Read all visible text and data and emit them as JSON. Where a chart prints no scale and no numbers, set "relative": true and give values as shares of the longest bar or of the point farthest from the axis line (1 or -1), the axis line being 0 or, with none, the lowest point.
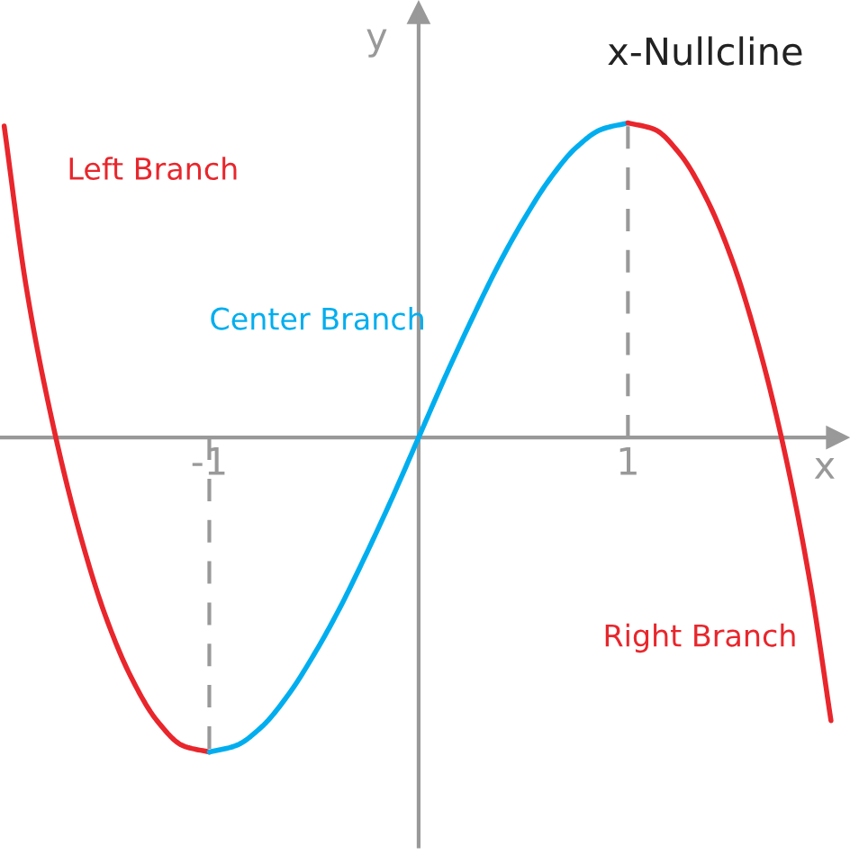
{
  "chart_data": {
    "type": "line",
    "title": "x-Nullcline",
    "xlabel": "x",
    "ylabel": "y",
    "relative": true,
    "xlim": [
      -2.0,
      2.0
    ],
    "xticks": [
      -1,
      1
    ],
    "grid": false,
    "legend": false,
    "marker": "none",
    "line_style": "solid",
    "series": [
      {
        "name": "Left Branch",
        "color": "#e8262c",
        "x": [
          -1.98,
          -1.875,
          -1.75,
          -1.625,
          -1.5,
          -1.375,
          -1.25,
          -1.125,
          -1.0
        ],
        "values": [
          0.99,
          0.48,
          0.05,
          -0.29,
          -0.56,
          -0.76,
          -0.9,
          -0.98,
          -1.0
        ]
      },
      {
        "name": "Center Branch",
        "color": "#00aeef",
        "x": [
          -1.0,
          -0.875,
          -0.75,
          -0.625,
          -0.5,
          -0.375,
          -0.25,
          -0.125,
          0,
          0.125,
          0.25,
          0.375,
          0.5,
          0.625,
          0.75,
          0.875,
          1.0
        ],
        "values": [
          -1.0,
          -0.98,
          -0.92,
          -0.82,
          -0.69,
          -0.54,
          -0.37,
          -0.19,
          0,
          0.19,
          0.37,
          0.54,
          0.69,
          0.82,
          0.92,
          0.98,
          1.0
        ]
      },
      {
        "name": "Right Branch",
        "color": "#e8262c",
        "x": [
          1.0,
          1.125,
          1.25,
          1.375,
          1.5,
          1.625,
          1.75,
          1.875,
          1.97
        ],
        "values": [
          1.0,
          0.98,
          0.9,
          0.76,
          0.56,
          0.29,
          -0.05,
          -0.48,
          -0.9
        ]
      }
    ],
    "ref_lines": [
      {
        "axis": "x",
        "value": -1,
        "color": "#999999",
        "line_style": "dashed"
      },
      {
        "axis": "x",
        "value": 1,
        "color": "#999999",
        "line_style": "dashed"
      }
    ]
  }
}
